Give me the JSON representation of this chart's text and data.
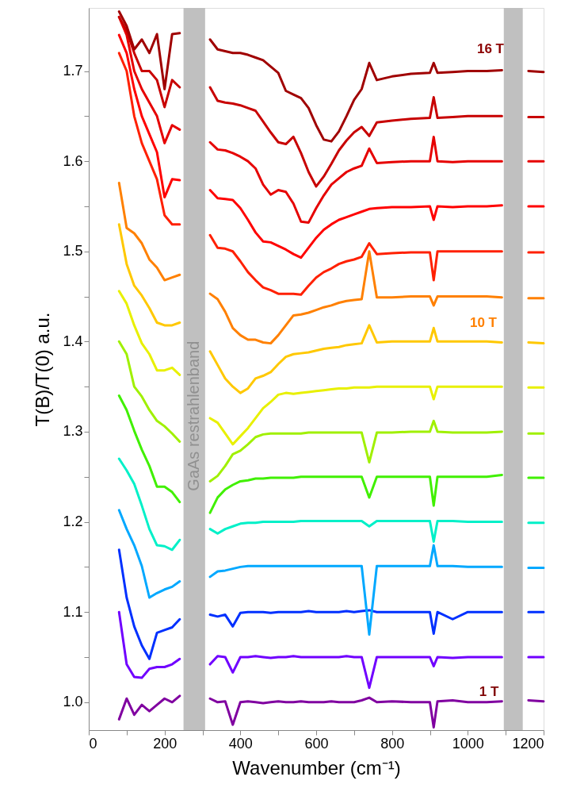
{
  "chart_data": {
    "type": "line",
    "xlabel": "Wavenumber (cm⁻¹)",
    "ylabel": "T(B)/T(0) a.u.",
    "xlim": [
      0,
      1200
    ],
    "ylim": [
      0.969,
      1.77
    ],
    "xticks": [
      0,
      {
        "value": 100,
        "label": null
      },
      200,
      {
        "value": 300,
        "label": null
      },
      400,
      {
        "value": 500,
        "label": null
      },
      600,
      {
        "value": 700,
        "label": null
      },
      800,
      {
        "value": 900,
        "label": null
      },
      1000,
      {
        "value": 1100,
        "label": null
      },
      1200
    ],
    "yticks": [
      {
        "value": 1.0,
        "label": "1.0"
      },
      {
        "value": 1.05,
        "label": null
      },
      {
        "value": 1.1,
        "label": "1.1"
      },
      {
        "value": 1.15,
        "label": null
      },
      {
        "value": 1.2,
        "label": "1.2"
      },
      {
        "value": 1.25,
        "label": null
      },
      {
        "value": 1.3,
        "label": "1.3"
      },
      {
        "value": 1.35,
        "label": null
      },
      {
        "value": 1.4,
        "label": "1.4"
      },
      {
        "value": 1.45,
        "label": null
      },
      {
        "value": 1.5,
        "label": "1.5"
      },
      {
        "value": 1.55,
        "label": null
      },
      {
        "value": 1.6,
        "label": "1.6"
      },
      {
        "value": 1.65,
        "label": null
      },
      {
        "value": 1.7,
        "label": "1.7"
      }
    ],
    "grid": false,
    "x": [
      80,
      100,
      120,
      140,
      160,
      180,
      200,
      220,
      240,
      280,
      320,
      340,
      360,
      380,
      400,
      420,
      440,
      460,
      480,
      500,
      520,
      540,
      560,
      580,
      600,
      620,
      640,
      660,
      680,
      700,
      720,
      740,
      760,
      800,
      850,
      900,
      910,
      920,
      960,
      1000,
      1050,
      1090,
      1120,
      1160,
      1200
    ],
    "series": [
      {
        "color": "#8000a0",
        "values": [
          0.981,
          1.004,
          0.986,
          0.997,
          0.99,
          0.997,
          1.004,
          1.0,
          1.007,
          null,
          1.004,
          1.0,
          1.001,
          0.975,
          1.0,
          1.001,
          1.0,
          0.999,
          1.0,
          1.001,
          1.0,
          1.0,
          1.001,
          1.0,
          1.0,
          1.0,
          1.001,
          1.0,
          1.0,
          1.0,
          1.002,
          1.005,
          1.0,
          1.001,
          1.0,
          1.0,
          0.972,
          1.001,
          1.002,
          1.0,
          1.0,
          1.001,
          null,
          1.002,
          1.001
        ]
      },
      {
        "color": "#7000ff",
        "values": [
          1.1,
          1.042,
          1.028,
          1.027,
          1.037,
          1.039,
          1.039,
          1.042,
          1.048,
          null,
          1.042,
          1.051,
          1.05,
          1.033,
          1.05,
          1.05,
          1.051,
          1.05,
          1.049,
          1.05,
          1.05,
          1.051,
          1.05,
          1.05,
          1.05,
          1.05,
          1.05,
          1.05,
          1.051,
          1.05,
          1.05,
          1.016,
          1.05,
          1.05,
          1.05,
          1.05,
          1.04,
          1.05,
          1.049,
          1.05,
          1.05,
          1.05,
          null,
          1.05,
          1.05
        ]
      },
      {
        "color": "#0030ff",
        "values": [
          1.169,
          1.116,
          1.084,
          1.063,
          1.048,
          1.077,
          1.08,
          1.083,
          1.092,
          null,
          1.097,
          1.095,
          1.097,
          1.084,
          1.099,
          1.1,
          1.1,
          1.1,
          1.099,
          1.1,
          1.1,
          1.1,
          1.1,
          1.101,
          1.1,
          1.1,
          1.1,
          1.1,
          1.101,
          1.1,
          1.101,
          1.102,
          1.1,
          1.1,
          1.1,
          1.1,
          1.076,
          1.1,
          1.092,
          1.1,
          1.1,
          1.1,
          null,
          1.1,
          1.1
        ]
      },
      {
        "color": "#00a8ff",
        "values": [
          1.213,
          1.192,
          1.174,
          1.151,
          1.116,
          1.121,
          1.125,
          1.128,
          1.134,
          null,
          1.139,
          1.145,
          1.146,
          1.148,
          1.15,
          1.151,
          1.151,
          1.151,
          1.151,
          1.151,
          1.151,
          1.151,
          1.151,
          1.151,
          1.151,
          1.151,
          1.151,
          1.151,
          1.151,
          1.151,
          1.151,
          1.075,
          1.151,
          1.151,
          1.151,
          1.151,
          1.174,
          1.151,
          1.151,
          1.15,
          1.15,
          1.15,
          null,
          1.149,
          1.149
        ]
      },
      {
        "color": "#00f0c8",
        "values": [
          1.27,
          1.257,
          1.242,
          1.218,
          1.192,
          1.174,
          1.173,
          1.169,
          1.18,
          null,
          1.192,
          1.187,
          1.192,
          1.195,
          1.198,
          1.199,
          1.199,
          1.2,
          1.2,
          1.2,
          1.2,
          1.2,
          1.201,
          1.201,
          1.201,
          1.201,
          1.201,
          1.201,
          1.201,
          1.201,
          1.201,
          1.195,
          1.201,
          1.201,
          1.201,
          1.201,
          1.178,
          1.201,
          1.201,
          1.2,
          1.2,
          1.2,
          null,
          1.199,
          1.199
        ]
      },
      {
        "color": "#40f000",
        "values": [
          1.34,
          1.324,
          1.301,
          1.28,
          1.262,
          1.239,
          1.239,
          1.233,
          1.222,
          null,
          1.21,
          1.227,
          1.236,
          1.241,
          1.245,
          1.246,
          1.248,
          1.248,
          1.249,
          1.249,
          1.249,
          1.249,
          1.25,
          1.25,
          1.25,
          1.25,
          1.25,
          1.25,
          1.25,
          1.25,
          1.25,
          1.227,
          1.25,
          1.25,
          1.25,
          1.25,
          1.218,
          1.25,
          1.25,
          1.25,
          1.25,
          1.252,
          null,
          1.249,
          1.249
        ]
      },
      {
        "color": "#a0f000",
        "values": [
          1.4,
          1.386,
          1.35,
          1.339,
          1.324,
          1.312,
          1.306,
          1.298,
          1.289,
          null,
          1.245,
          1.251,
          1.262,
          1.275,
          1.279,
          1.286,
          1.294,
          1.297,
          1.298,
          1.298,
          1.298,
          1.298,
          1.298,
          1.299,
          1.299,
          1.299,
          1.299,
          1.299,
          1.299,
          1.299,
          1.299,
          1.266,
          1.299,
          1.299,
          1.3,
          1.3,
          1.312,
          1.3,
          1.299,
          1.299,
          1.299,
          1.3,
          null,
          1.298,
          1.298
        ]
      },
      {
        "color": "#e8f000",
        "values": [
          1.456,
          1.442,
          1.418,
          1.398,
          1.386,
          1.368,
          1.368,
          1.371,
          1.363,
          null,
          1.315,
          1.31,
          1.298,
          1.286,
          1.295,
          1.304,
          1.315,
          1.326,
          1.333,
          1.341,
          1.343,
          1.342,
          1.343,
          1.344,
          1.345,
          1.346,
          1.347,
          1.348,
          1.348,
          1.349,
          1.349,
          1.349,
          1.35,
          1.35,
          1.35,
          1.35,
          1.336,
          1.35,
          1.35,
          1.35,
          1.35,
          1.35,
          null,
          1.349,
          1.349
        ]
      },
      {
        "color": "#ffc800",
        "values": [
          1.53,
          1.486,
          1.462,
          1.451,
          1.437,
          1.421,
          1.418,
          1.418,
          1.421,
          null,
          1.389,
          1.374,
          1.359,
          1.35,
          1.343,
          1.348,
          1.359,
          1.362,
          1.366,
          1.375,
          1.383,
          1.386,
          1.387,
          1.388,
          1.39,
          1.392,
          1.393,
          1.394,
          1.396,
          1.397,
          1.398,
          1.418,
          1.399,
          1.4,
          1.4,
          1.4,
          1.415,
          1.4,
          1.4,
          1.4,
          1.4,
          1.399,
          null,
          1.399,
          1.398
        ]
      },
      {
        "color": "#ff8000",
        "values": [
          1.576,
          1.526,
          1.52,
          1.509,
          1.491,
          1.482,
          1.468,
          1.471,
          1.474,
          null,
          1.453,
          1.447,
          1.433,
          1.415,
          1.407,
          1.402,
          1.402,
          1.399,
          1.398,
          1.407,
          1.418,
          1.429,
          1.43,
          1.432,
          1.435,
          1.438,
          1.44,
          1.443,
          1.445,
          1.446,
          1.447,
          1.5,
          1.449,
          1.449,
          1.45,
          1.45,
          1.44,
          1.45,
          1.45,
          1.45,
          1.45,
          1.449,
          null,
          1.448,
          1.448
        ]
      },
      {
        "color": "#ff2000",
        "values": [
          1.72,
          1.7,
          1.65,
          1.62,
          1.6,
          1.58,
          1.54,
          1.53,
          1.53,
          null,
          1.518,
          1.504,
          1.503,
          1.5,
          1.489,
          1.477,
          1.468,
          1.46,
          1.457,
          1.453,
          1.453,
          1.453,
          1.452,
          1.462,
          1.471,
          1.477,
          1.481,
          1.486,
          1.489,
          1.491,
          1.494,
          1.509,
          1.497,
          1.498,
          1.499,
          1.499,
          1.468,
          1.5,
          1.5,
          1.5,
          1.5,
          1.5,
          null,
          1.499,
          1.499
        ]
      },
      {
        "color": "#ff0000",
        "values": [
          1.74,
          1.72,
          1.68,
          1.65,
          1.63,
          1.61,
          1.56,
          1.58,
          1.579,
          null,
          1.568,
          1.559,
          1.558,
          1.557,
          1.548,
          1.535,
          1.521,
          1.511,
          1.51,
          1.506,
          1.502,
          1.497,
          1.493,
          1.504,
          1.515,
          1.524,
          1.53,
          1.535,
          1.538,
          1.541,
          1.544,
          1.547,
          1.548,
          1.549,
          1.549,
          1.55,
          1.535,
          1.55,
          1.549,
          1.55,
          1.55,
          1.551,
          null,
          1.55,
          1.55
        ]
      },
      {
        "color": "#e60000",
        "values": [
          1.76,
          1.74,
          1.7,
          1.68,
          1.665,
          1.65,
          1.62,
          1.64,
          1.635,
          null,
          1.621,
          1.613,
          1.612,
          1.609,
          1.605,
          1.6,
          1.592,
          1.574,
          1.563,
          1.568,
          1.566,
          1.553,
          1.533,
          1.532,
          1.548,
          1.562,
          1.574,
          1.581,
          1.588,
          1.592,
          1.595,
          1.614,
          1.598,
          1.599,
          1.6,
          1.6,
          1.627,
          1.6,
          1.599,
          1.6,
          1.6,
          1.6,
          null,
          1.6,
          1.6
        ]
      },
      {
        "color": "#c80000",
        "values": [
          1.76,
          1.745,
          1.72,
          1.7,
          1.7,
          1.69,
          1.66,
          1.69,
          1.682,
          null,
          1.682,
          1.667,
          1.665,
          1.664,
          1.662,
          1.659,
          1.656,
          1.644,
          1.632,
          1.621,
          1.619,
          1.627,
          1.609,
          1.588,
          1.572,
          1.583,
          1.597,
          1.612,
          1.623,
          1.632,
          1.638,
          1.628,
          1.643,
          1.645,
          1.647,
          1.648,
          1.671,
          1.648,
          1.649,
          1.65,
          1.65,
          1.65,
          null,
          1.649,
          1.649
        ]
      },
      {
        "color": "#a00000",
        "values": [
          1.766,
          1.75,
          1.724,
          1.735,
          1.72,
          1.741,
          1.68,
          1.741,
          1.742,
          null,
          1.735,
          1.724,
          1.722,
          1.72,
          1.72,
          1.718,
          1.715,
          1.712,
          1.705,
          1.698,
          1.678,
          1.674,
          1.67,
          1.659,
          1.64,
          1.624,
          1.622,
          1.633,
          1.65,
          1.668,
          1.68,
          1.709,
          1.69,
          1.694,
          1.697,
          1.698,
          1.709,
          1.698,
          1.699,
          1.7,
          1.7,
          1.701,
          null,
          1.7,
          1.699
        ]
      }
    ],
    "bands": [
      {
        "axis": "x",
        "from": 250,
        "to": 307,
        "label": "GaAs restrahlenband",
        "color": "#c0c0c0"
      },
      {
        "axis": "x",
        "from": 1095,
        "to": 1145,
        "color": "#c0c0c0"
      }
    ],
    "annotations": [
      "16 T",
      "10 T",
      "1 T"
    ]
  }
}
